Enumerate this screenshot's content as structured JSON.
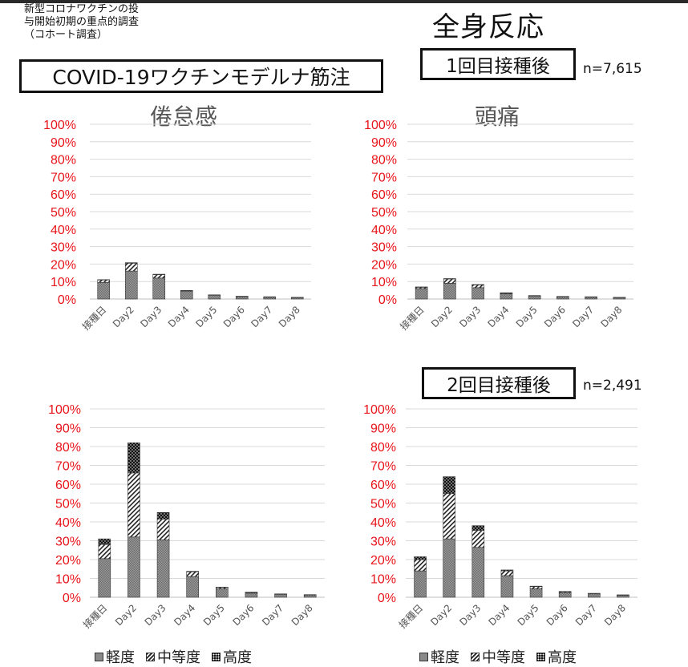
{
  "header": {
    "study_lines": [
      "新型コロナワクチンの投",
      "与開始初期の重点的調査",
      "（コホート調査）"
    ],
    "main_title": "全身反応",
    "vaccine": "COVID-19ワクチンモデルナ筋注",
    "dose1_label": "1回目接種後",
    "dose1_n": "n=7,615",
    "dose2_label": "2回目接種後",
    "dose2_n": "n=2,491"
  },
  "titles": {
    "fatigue": "倦怠感",
    "headache": "頭痛"
  },
  "legend": [
    "軽度",
    "中等度",
    "高度"
  ],
  "colors": {
    "tick_red": "#e8141a",
    "grid": "#d9d9d9",
    "mild": "#8a8a8a",
    "moderate": "#ffffff",
    "severe": "#111111"
  },
  "chart_data": [
    {
      "type": "bar",
      "stacked": true,
      "title": "倦怠感",
      "panel": "1回目接種後",
      "categories": [
        "接種日",
        "Day2",
        "Day3",
        "Day4",
        "Day5",
        "Day6",
        "Day7",
        "Day8"
      ],
      "yticks": [
        "0%",
        "10%",
        "20%",
        "30%",
        "40%",
        "50%",
        "60%",
        "70%",
        "80%",
        "90%",
        "100%"
      ],
      "ylim": [
        0,
        100
      ],
      "series": [
        {
          "name": "軽度",
          "values": [
            9.5,
            16,
            12,
            4.5,
            2.2,
            1.5,
            1.2,
            0.9
          ]
        },
        {
          "name": "中等度",
          "values": [
            1.5,
            4.5,
            2,
            0.3,
            0.2,
            0.1,
            0.1,
            0.1
          ]
        },
        {
          "name": "高度",
          "values": [
            0.1,
            0.3,
            0.2,
            0.1,
            0,
            0,
            0,
            0
          ]
        }
      ]
    },
    {
      "type": "bar",
      "stacked": true,
      "title": "頭痛",
      "panel": "1回目接種後",
      "categories": [
        "接種日",
        "Day2",
        "Day3",
        "Day4",
        "Day5",
        "Day6",
        "Day7",
        "Day8"
      ],
      "yticks": [
        "0%",
        "10%",
        "20%",
        "30%",
        "40%",
        "50%",
        "60%",
        "70%",
        "80%",
        "90%",
        "100%"
      ],
      "ylim": [
        0,
        100
      ],
      "series": [
        {
          "name": "軽度",
          "values": [
            6,
            9,
            6.5,
            3,
            1.8,
            1.4,
            1.2,
            0.9
          ]
        },
        {
          "name": "中等度",
          "values": [
            0.8,
            2.5,
            1.7,
            0.5,
            0.2,
            0.1,
            0.1,
            0.1
          ]
        },
        {
          "name": "高度",
          "values": [
            0.1,
            0.2,
            0.1,
            0.1,
            0,
            0,
            0,
            0
          ]
        }
      ]
    },
    {
      "type": "bar",
      "stacked": true,
      "title": "倦怠感",
      "panel": "2回目接種後",
      "categories": [
        "接種日",
        "Day2",
        "Day3",
        "Day4",
        "Day5",
        "Day6",
        "Day7",
        "Day8"
      ],
      "yticks": [
        "0%",
        "10%",
        "20%",
        "30%",
        "40%",
        "50%",
        "60%",
        "70%",
        "80%",
        "90%",
        "100%"
      ],
      "ylim": [
        0,
        100
      ],
      "series": [
        {
          "name": "軽度",
          "values": [
            20.5,
            32,
            30.5,
            11,
            4.5,
            2.2,
            1.6,
            1.2
          ]
        },
        {
          "name": "中等度",
          "values": [
            7.5,
            34,
            11,
            2.5,
            0.8,
            0.4,
            0.2,
            0.2
          ]
        },
        {
          "name": "高度",
          "values": [
            3,
            16,
            3.5,
            0.3,
            0.1,
            0.1,
            0,
            0
          ]
        }
      ]
    },
    {
      "type": "bar",
      "stacked": true,
      "title": "頭痛",
      "panel": "2回目接種後",
      "categories": [
        "接種日",
        "Day2",
        "Day3",
        "Day4",
        "Day5",
        "Day6",
        "Day7",
        "Day8"
      ],
      "yticks": [
        "0%",
        "10%",
        "20%",
        "30%",
        "40%",
        "50%",
        "60%",
        "70%",
        "80%",
        "90%",
        "100%"
      ],
      "ylim": [
        0,
        100
      ],
      "series": [
        {
          "name": "軽度",
          "values": [
            14,
            31,
            26.5,
            11.5,
            4.5,
            2.5,
            1.8,
            1.1
          ]
        },
        {
          "name": "中等度",
          "values": [
            6,
            24,
            9,
            2.5,
            1.2,
            0.5,
            0.3,
            0.2
          ]
        },
        {
          "name": "高度",
          "values": [
            1.5,
            9,
            2.5,
            0.5,
            0.2,
            0.1,
            0,
            0
          ]
        }
      ]
    }
  ]
}
